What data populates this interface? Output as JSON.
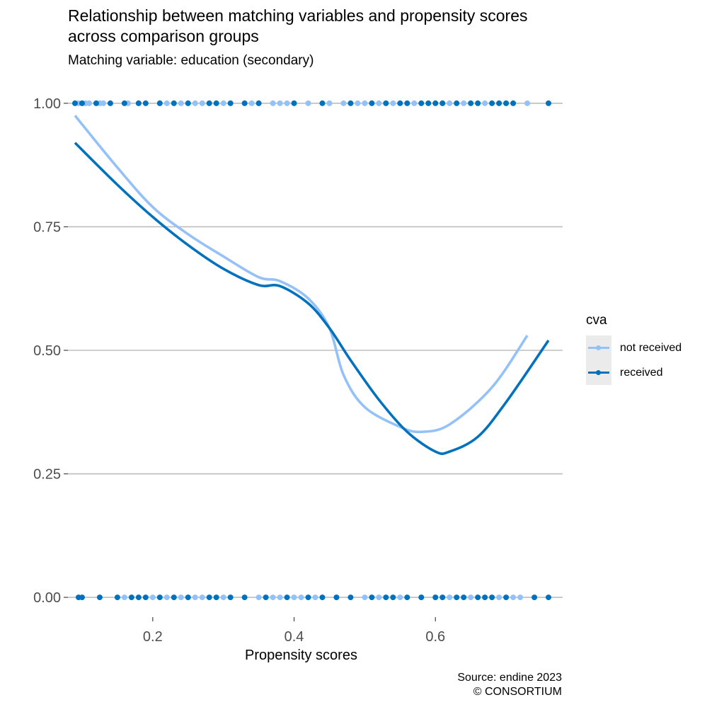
{
  "chart_data": {
    "type": "scatter",
    "title": "Relationship between matching variables and propensity scores\nacross comparison groups",
    "subtitle": "Matching variable: education (secondary)",
    "xlabel": "Propensity scores",
    "ylabel": "",
    "caption": "Source: endine 2023\n© CONSORTIUM",
    "xlim": [
      0.08,
      0.78
    ],
    "ylim": [
      -0.04,
      1.04
    ],
    "x_ticks": [
      0.2,
      0.4,
      0.6
    ],
    "x_tick_labels": [
      "0.2",
      "0.4",
      "0.6"
    ],
    "y_ticks": [
      0,
      0.25,
      0.5,
      0.75,
      1
    ],
    "y_tick_labels": [
      "0.00",
      "0.25",
      "0.50",
      "0.75",
      "1.00"
    ],
    "grid": true,
    "legend": {
      "title": "cva",
      "position": "right",
      "items": [
        {
          "name": "not received",
          "color": "#94c1f7"
        },
        {
          "name": "received",
          "color": "#0071bc"
        }
      ]
    },
    "series": [
      {
        "name": "not received",
        "color": "#94c1f7",
        "smooth": [
          [
            0.09,
            0.975
          ],
          [
            0.15,
            0.87
          ],
          [
            0.2,
            0.79
          ],
          [
            0.25,
            0.735
          ],
          [
            0.3,
            0.69
          ],
          [
            0.35,
            0.648
          ],
          [
            0.38,
            0.64
          ],
          [
            0.42,
            0.605
          ],
          [
            0.45,
            0.545
          ],
          [
            0.47,
            0.45
          ],
          [
            0.5,
            0.385
          ],
          [
            0.55,
            0.345
          ],
          [
            0.58,
            0.335
          ],
          [
            0.62,
            0.35
          ],
          [
            0.68,
            0.425
          ],
          [
            0.73,
            0.53
          ]
        ],
        "points_y1": [
          0.095,
          0.1,
          0.105,
          0.11,
          0.125,
          0.13,
          0.165,
          0.18,
          0.21,
          0.22,
          0.24,
          0.26,
          0.27,
          0.3,
          0.34,
          0.37,
          0.38,
          0.39,
          0.42,
          0.45,
          0.47,
          0.49,
          0.5,
          0.52,
          0.53,
          0.54,
          0.57,
          0.61,
          0.62,
          0.64,
          0.67,
          0.7,
          0.73
        ],
        "points_y0": [
          0.16,
          0.2,
          0.22,
          0.24,
          0.25,
          0.26,
          0.27,
          0.3,
          0.35,
          0.37,
          0.38,
          0.4,
          0.41,
          0.43,
          0.46,
          0.5,
          0.52,
          0.55,
          0.58,
          0.6,
          0.62,
          0.65,
          0.69,
          0.71,
          0.72
        ]
      },
      {
        "name": "received",
        "color": "#0071bc",
        "smooth": [
          [
            0.09,
            0.92
          ],
          [
            0.15,
            0.835
          ],
          [
            0.2,
            0.77
          ],
          [
            0.25,
            0.713
          ],
          [
            0.3,
            0.665
          ],
          [
            0.35,
            0.632
          ],
          [
            0.38,
            0.63
          ],
          [
            0.42,
            0.595
          ],
          [
            0.45,
            0.545
          ],
          [
            0.48,
            0.48
          ],
          [
            0.52,
            0.4
          ],
          [
            0.56,
            0.335
          ],
          [
            0.6,
            0.295
          ],
          [
            0.62,
            0.295
          ],
          [
            0.66,
            0.325
          ],
          [
            0.7,
            0.395
          ],
          [
            0.76,
            0.52
          ]
        ],
        "points_y1": [
          0.09,
          0.1,
          0.12,
          0.14,
          0.16,
          0.18,
          0.19,
          0.21,
          0.23,
          0.25,
          0.28,
          0.29,
          0.31,
          0.33,
          0.35,
          0.4,
          0.44,
          0.48,
          0.51,
          0.53,
          0.55,
          0.56,
          0.58,
          0.59,
          0.6,
          0.61,
          0.63,
          0.65,
          0.66,
          0.68,
          0.69,
          0.7,
          0.71,
          0.76
        ],
        "points_y0": [
          0.095,
          0.1,
          0.125,
          0.15,
          0.17,
          0.18,
          0.19,
          0.21,
          0.23,
          0.25,
          0.28,
          0.29,
          0.31,
          0.33,
          0.36,
          0.39,
          0.42,
          0.44,
          0.46,
          0.48,
          0.51,
          0.53,
          0.54,
          0.56,
          0.58,
          0.6,
          0.61,
          0.63,
          0.64,
          0.66,
          0.67,
          0.68,
          0.7,
          0.74,
          0.76
        ]
      }
    ]
  }
}
